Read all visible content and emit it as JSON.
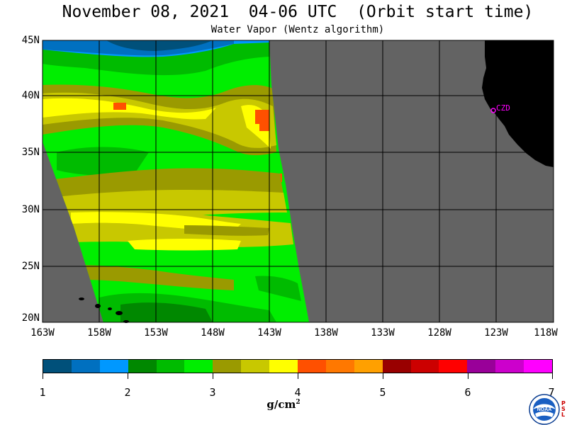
{
  "header": {
    "title": "November 08, 2021  04-06 UTC  (Orbit start time)",
    "subtitle": "Water Vapor (Wentz algorithm)"
  },
  "map": {
    "latitude_labels": [
      "45N",
      "40N",
      "35N",
      "30N",
      "25N",
      "20N"
    ],
    "longitude_labels": [
      "163W",
      "158W",
      "153W",
      "148W",
      "143W",
      "138W",
      "133W",
      "128W",
      "123W",
      "118W"
    ],
    "lat_range": [
      20,
      45
    ],
    "lon_range": [
      -163,
      -118
    ],
    "station_label": "CZD",
    "colors": {
      "no_data": "#636363",
      "land": "#000000",
      "grid": "#000000",
      "station": "#ff00ff"
    }
  },
  "colorbar": {
    "ticks": [
      "1",
      "2",
      "3",
      "4",
      "5",
      "6",
      "7"
    ],
    "units_base": "g/cm",
    "units_exp": "2",
    "colors": [
      "#00507a",
      "#0070c0",
      "#0098ff",
      "#008800",
      "#00bb00",
      "#00ee00",
      "#9a9a00",
      "#c8c800",
      "#ffff00",
      "#ff5000",
      "#ff7800",
      "#ffa000",
      "#990000",
      "#cc0000",
      "#ff0000",
      "#990099",
      "#cc00cc",
      "#ff00ff"
    ]
  },
  "logo": {
    "text": "NOAA",
    "side_letters": [
      "P",
      "S",
      "L"
    ]
  }
}
